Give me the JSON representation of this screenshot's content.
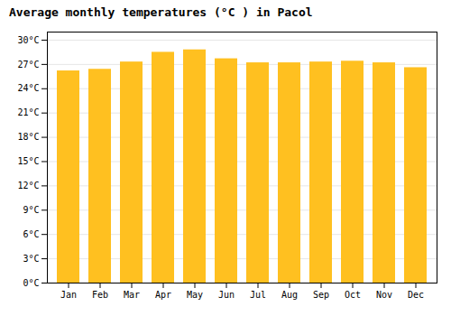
{
  "chart_data": {
    "type": "bar",
    "title": "Average monthly temperatures (°C ) in Pacol",
    "categories": [
      "Jan",
      "Feb",
      "Mar",
      "Apr",
      "May",
      "Jun",
      "Jul",
      "Aug",
      "Sep",
      "Oct",
      "Nov",
      "Dec"
    ],
    "values": [
      26.2,
      26.4,
      27.3,
      28.5,
      28.8,
      27.7,
      27.2,
      27.2,
      27.3,
      27.4,
      27.2,
      26.6
    ],
    "color": "#FFC020",
    "ylim": [
      0,
      31
    ],
    "yticks": [
      {
        "value": 0,
        "label": "0°C"
      },
      {
        "value": 3,
        "label": "3°C"
      },
      {
        "value": 6,
        "label": "6°C"
      },
      {
        "value": 9,
        "label": "9°C"
      },
      {
        "value": 12,
        "label": "12°C"
      },
      {
        "value": 15,
        "label": "15°C"
      },
      {
        "value": 18,
        "label": "18°C"
      },
      {
        "value": 21,
        "label": "21°C"
      },
      {
        "value": 24,
        "label": "24°C"
      },
      {
        "value": 27,
        "label": "27°C"
      },
      {
        "value": 30,
        "label": "30°C"
      }
    ],
    "grid": true
  }
}
